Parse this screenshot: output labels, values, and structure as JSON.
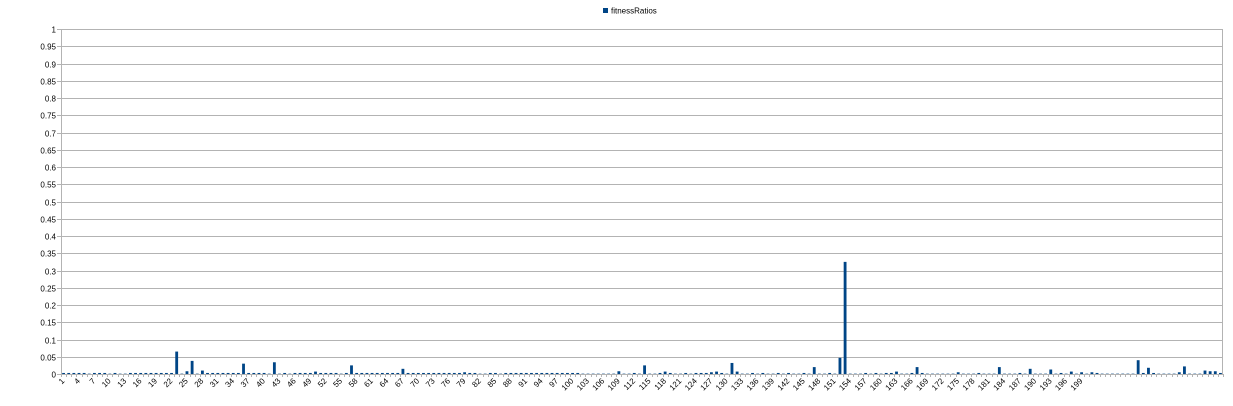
{
  "chart_data": {
    "type": "bar",
    "legend": {
      "position": "top",
      "entries": [
        "fitnessRatios"
      ]
    },
    "series": [
      {
        "name": "fitnessRatios",
        "color": "#004586",
        "values": [
          0.003,
          0.003,
          0.003,
          0.003,
          0.003,
          0.001,
          0.003,
          0.003,
          0.003,
          0.001,
          0.003,
          0.001,
          0.001,
          0.003,
          0.003,
          0.003,
          0.003,
          0.003,
          0.003,
          0.003,
          0.003,
          0.003,
          0.065,
          0.001,
          0.008,
          0.038,
          0.001,
          0.01,
          0.003,
          0.003,
          0.003,
          0.003,
          0.003,
          0.003,
          0.003,
          0.03,
          0.003,
          0.003,
          0.003,
          0.003,
          0.001,
          0.034,
          0.001,
          0.003,
          0.001,
          0.003,
          0.003,
          0.003,
          0.003,
          0.007,
          0.003,
          0.003,
          0.003,
          0.003,
          0.001,
          0.003,
          0.025,
          0.003,
          0.003,
          0.003,
          0.003,
          0.003,
          0.003,
          0.003,
          0.003,
          0.003,
          0.015,
          0.003,
          0.003,
          0.003,
          0.003,
          0.003,
          0.003,
          0.003,
          0.003,
          0.003,
          0.003,
          0.003,
          0.005,
          0.003,
          0.003,
          0.001,
          0.001,
          0.003,
          0.003,
          0.001,
          0.003,
          0.003,
          0.003,
          0.003,
          0.003,
          0.003,
          0.003,
          0.003,
          0.003,
          0.003,
          0.003,
          0.003,
          0.003,
          0.003,
          0.003,
          0.001,
          0.001,
          0.001,
          0.001,
          0.001,
          0.001,
          0.001,
          0.008,
          0.001,
          0.001,
          0.003,
          0.001,
          0.025,
          0.001,
          0.001,
          0.003,
          0.007,
          0.003,
          0.001,
          0.001,
          0.003,
          0.001,
          0.003,
          0.003,
          0.003,
          0.005,
          0.007,
          0.003,
          0.001,
          0.032,
          0.007,
          0.001,
          0.001,
          0.003,
          0.001,
          0.003,
          0.001,
          0.001,
          0.003,
          0.001,
          0.003,
          0.001,
          0.001,
          0.003,
          0.001,
          0.02,
          0.001,
          0.001,
          0.003,
          0.001,
          0.047,
          0.325,
          0.001,
          0.001,
          0.001,
          0.003,
          0.001,
          0.003,
          0.001,
          0.003,
          0.003,
          0.007,
          0.001,
          0.001,
          0.003,
          0.02,
          0.003,
          0.001,
          0.001,
          0.001,
          0.001,
          0.001,
          0.001,
          0.005,
          0.001,
          0.001,
          0.001,
          0.003,
          0.001,
          0.001,
          0.001,
          0.02,
          0.001,
          0.001,
          0.001,
          0.003,
          0.001,
          0.015,
          0.001,
          0.001,
          0.001,
          0.013,
          0.001,
          0.003,
          0.001,
          0.007,
          0.001,
          0.005,
          0.001,
          0.005,
          0.003,
          0.001,
          0.001,
          0.001,
          0.001,
          0.001,
          0.001,
          0.001,
          0.04,
          0.003,
          0.018,
          0.003,
          0.001,
          0.001,
          0.001,
          0.001,
          0.005,
          0.022,
          0.001,
          0.001,
          0.001,
          0.01,
          0.008,
          0.008,
          0.003
        ]
      }
    ],
    "x_tick_labels": [
      "1",
      "4",
      "7",
      "10",
      "13",
      "16",
      "19",
      "22",
      "25",
      "28",
      "31",
      "34",
      "37",
      "40",
      "43",
      "46",
      "49",
      "52",
      "55",
      "58",
      "61",
      "64",
      "67",
      "70",
      "73",
      "76",
      "79",
      "82",
      "85",
      "88",
      "91",
      "94",
      "97",
      "100",
      "103",
      "106",
      "109",
      "112",
      "115",
      "118",
      "121",
      "124",
      "127",
      "130",
      "133",
      "136",
      "139",
      "142",
      "145",
      "148",
      "151",
      "154",
      "157",
      "160",
      "163",
      "166",
      "169",
      "172",
      "175",
      "178",
      "181",
      "184",
      "187",
      "190",
      "193",
      "196",
      "199"
    ],
    "x_tick_step": 3,
    "y_ticks": [
      "0",
      "0.05",
      "0.1",
      "0.15",
      "0.2",
      "0.25",
      "0.3",
      "0.35",
      "0.4",
      "0.45",
      "0.5",
      "0.55",
      "0.6",
      "0.65",
      "0.7",
      "0.75",
      "0.8",
      "0.85",
      "0.9",
      "0.95",
      "1"
    ],
    "ylim": [
      0,
      1
    ],
    "grid": true,
    "title": "",
    "xlabel": "",
    "ylabel": ""
  }
}
